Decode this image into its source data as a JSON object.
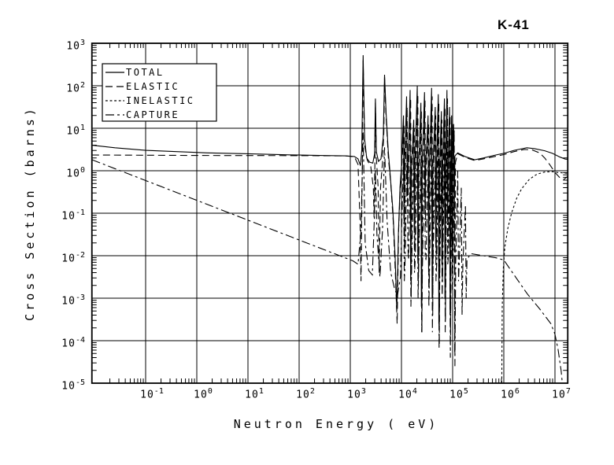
{
  "meta": {
    "background_color": "#ffffff",
    "line_color": "#000000",
    "isotope_title": "K-41"
  },
  "chart_data": {
    "type": "line",
    "title": "K-41",
    "xlabel": "Neutron Energy (  eV)",
    "ylabel": "Cross Section (barns)",
    "scale": "log-log",
    "x_unit": "eV",
    "y_unit": "barns",
    "x_log_range": [
      -2.05,
      7.25
    ],
    "y_log_range": [
      -5,
      3
    ],
    "x_tick_exponents": [
      -1,
      0,
      1,
      2,
      3,
      4,
      5,
      6,
      7
    ],
    "y_tick_exponents": [
      3,
      2,
      1,
      0,
      -1,
      -2,
      -3,
      -4,
      -5
    ],
    "tick_mantissa": "10",
    "grid": true,
    "legend_position": "top-left",
    "note": "points are [log10(E in eV), log10(sigma in barns)]",
    "series": [
      {
        "name": "TOTAL",
        "line_style": "solid",
        "points": [
          [
            -2.05,
            0.6
          ],
          [
            -1.6,
            0.54
          ],
          [
            -1.0,
            0.48
          ],
          [
            -0.4,
            0.45
          ],
          [
            0.2,
            0.42
          ],
          [
            1.0,
            0.4
          ],
          [
            1.8,
            0.375
          ],
          [
            2.4,
            0.36
          ],
          [
            2.9,
            0.35
          ],
          [
            3.08,
            0.335
          ],
          [
            3.15,
            0.28
          ],
          [
            3.2,
            0.12
          ],
          [
            3.225,
            0.5
          ],
          [
            3.25,
            2.72
          ],
          [
            3.28,
            0.75
          ],
          [
            3.32,
            0.3
          ],
          [
            3.38,
            0.2
          ],
          [
            3.44,
            0.18
          ],
          [
            3.475,
            0.4
          ],
          [
            3.49,
            1.7
          ],
          [
            3.51,
            0.45
          ],
          [
            3.55,
            0.22
          ],
          [
            3.6,
            0.28
          ],
          [
            3.645,
            0.8
          ],
          [
            3.67,
            2.26
          ],
          [
            3.7,
            1.35
          ],
          [
            3.74,
            0.5
          ],
          [
            3.78,
            -0.1
          ],
          [
            3.83,
            -0.9
          ],
          [
            3.875,
            -2.0
          ],
          [
            3.91,
            -3.3
          ],
          [
            3.94,
            -1.5
          ],
          [
            3.97,
            -0.4
          ],
          [
            4.0,
            0.1
          ],
          [
            4.04,
            1.3
          ],
          [
            4.05,
            -1.2
          ],
          [
            4.065,
            0.2
          ],
          [
            4.1,
            1.75
          ],
          [
            4.115,
            -0.6
          ],
          [
            4.13,
            0.15
          ],
          [
            4.17,
            1.9
          ],
          [
            4.18,
            -2.6
          ],
          [
            4.195,
            0.1
          ],
          [
            4.24,
            1.2
          ],
          [
            4.25,
            -1.4
          ],
          [
            4.265,
            0.2
          ],
          [
            4.31,
            2.0
          ],
          [
            4.32,
            -2.1
          ],
          [
            4.335,
            0.0
          ],
          [
            4.38,
            1.6
          ],
          [
            4.39,
            -3.2
          ],
          [
            4.405,
            0.1
          ],
          [
            4.45,
            1.85
          ],
          [
            4.46,
            -0.9
          ],
          [
            4.475,
            0.15
          ],
          [
            4.52,
            1.3
          ],
          [
            4.53,
            -2.4
          ],
          [
            4.545,
            0.0
          ],
          [
            4.59,
            1.95
          ],
          [
            4.6,
            -3.0
          ],
          [
            4.615,
            0.1
          ],
          [
            4.66,
            1.5
          ],
          [
            4.67,
            -1.6
          ],
          [
            4.685,
            0.1
          ],
          [
            4.72,
            1.8
          ],
          [
            4.73,
            -3.6
          ],
          [
            4.745,
            0.0
          ],
          [
            4.78,
            1.4
          ],
          [
            4.79,
            -2.2
          ],
          [
            4.805,
            0.1
          ],
          [
            4.84,
            1.7
          ],
          [
            4.85,
            -3.0
          ],
          [
            4.86,
            -0.2
          ],
          [
            4.89,
            1.9
          ],
          [
            4.9,
            -1.2
          ],
          [
            4.91,
            0.0
          ],
          [
            4.94,
            1.5
          ],
          [
            4.95,
            -3.4
          ],
          [
            4.96,
            -0.3
          ],
          [
            4.98,
            1.3
          ],
          [
            4.99,
            -2.0
          ],
          [
            5.0,
            0.2
          ],
          [
            5.02,
            1.1
          ],
          [
            5.03,
            -1.0
          ],
          [
            5.045,
            0.35
          ],
          [
            5.1,
            0.42
          ],
          [
            5.25,
            0.33
          ],
          [
            5.43,
            0.26
          ],
          [
            5.6,
            0.3
          ],
          [
            5.8,
            0.36
          ],
          [
            6.0,
            0.41
          ],
          [
            6.2,
            0.48
          ],
          [
            6.45,
            0.54
          ],
          [
            6.6,
            0.52
          ],
          [
            6.8,
            0.47
          ],
          [
            6.95,
            0.41
          ],
          [
            7.1,
            0.32
          ],
          [
            7.2,
            0.275
          ],
          [
            7.25,
            0.27
          ]
        ]
      },
      {
        "name": "ELASTIC",
        "line_style": "long-dash",
        "points": [
          [
            -2.05,
            0.37
          ],
          [
            -1.0,
            0.365
          ],
          [
            0.0,
            0.36
          ],
          [
            1.0,
            0.358
          ],
          [
            2.0,
            0.355
          ],
          [
            2.9,
            0.35
          ],
          [
            3.08,
            0.33
          ],
          [
            3.15,
            0.15
          ],
          [
            3.19,
            -1.2
          ],
          [
            3.21,
            -2.6
          ],
          [
            3.235,
            0.2
          ],
          [
            3.25,
            2.6
          ],
          [
            3.28,
            0.6
          ],
          [
            3.33,
            0.25
          ],
          [
            3.4,
            0.1
          ],
          [
            3.45,
            -0.4
          ],
          [
            3.465,
            -1.1
          ],
          [
            3.48,
            0.1
          ],
          [
            3.49,
            1.6
          ],
          [
            3.51,
            0.3
          ],
          [
            3.545,
            -0.4
          ],
          [
            3.565,
            -2.4
          ],
          [
            3.59,
            -0.4
          ],
          [
            3.63,
            0.2
          ],
          [
            3.655,
            0.9
          ],
          [
            3.67,
            2.2
          ],
          [
            3.7,
            1.25
          ],
          [
            3.745,
            0.3
          ],
          [
            3.79,
            -0.3
          ],
          [
            3.84,
            -1.2
          ],
          [
            3.88,
            -2.4
          ],
          [
            3.915,
            -3.6
          ],
          [
            3.945,
            -1.4
          ],
          [
            3.975,
            -0.4
          ],
          [
            4.005,
            0.05
          ],
          [
            4.05,
            1.1
          ],
          [
            4.06,
            -1.8
          ],
          [
            4.075,
            0.1
          ],
          [
            4.11,
            1.5
          ],
          [
            4.125,
            -1.0
          ],
          [
            4.14,
            0.1
          ],
          [
            4.18,
            1.7
          ],
          [
            4.19,
            -3.0
          ],
          [
            4.205,
            0.1
          ],
          [
            4.25,
            1.0
          ],
          [
            4.26,
            -1.9
          ],
          [
            4.275,
            0.1
          ],
          [
            4.32,
            1.8
          ],
          [
            4.33,
            -2.7
          ],
          [
            4.345,
            0.0
          ],
          [
            4.39,
            1.4
          ],
          [
            4.4,
            -3.8
          ],
          [
            4.415,
            0.0
          ],
          [
            4.46,
            1.65
          ],
          [
            4.47,
            -1.3
          ],
          [
            4.485,
            0.1
          ],
          [
            4.53,
            1.1
          ],
          [
            4.54,
            -2.8
          ],
          [
            4.555,
            0.0
          ],
          [
            4.6,
            1.75
          ],
          [
            4.61,
            -3.4
          ],
          [
            4.625,
            0.0
          ],
          [
            4.67,
            1.3
          ],
          [
            4.68,
            -2.0
          ],
          [
            4.695,
            0.0
          ],
          [
            4.73,
            1.6
          ],
          [
            4.74,
            -4.1
          ],
          [
            4.755,
            -0.1
          ],
          [
            4.79,
            1.2
          ],
          [
            4.8,
            -2.6
          ],
          [
            4.815,
            0.0
          ],
          [
            4.85,
            1.5
          ],
          [
            4.86,
            -3.5
          ],
          [
            4.87,
            -0.3
          ],
          [
            4.9,
            1.7
          ],
          [
            4.91,
            -1.7
          ],
          [
            4.92,
            -0.1
          ],
          [
            4.95,
            1.3
          ],
          [
            4.96,
            -3.9
          ],
          [
            4.97,
            -0.5
          ],
          [
            4.99,
            1.1
          ],
          [
            5.0,
            -2.4
          ],
          [
            5.01,
            -0.2
          ],
          [
            5.03,
            0.95
          ],
          [
            5.04,
            -4.3
          ],
          [
            5.055,
            0.2
          ],
          [
            5.1,
            0.4
          ],
          [
            5.25,
            0.31
          ],
          [
            5.43,
            0.24
          ],
          [
            5.6,
            0.28
          ],
          [
            5.8,
            0.33
          ],
          [
            6.0,
            0.38
          ],
          [
            6.2,
            0.45
          ],
          [
            6.4,
            0.5
          ],
          [
            6.55,
            0.49
          ],
          [
            6.7,
            0.42
          ],
          [
            6.8,
            0.3
          ],
          [
            6.9,
            0.14
          ],
          [
            7.0,
            -0.04
          ],
          [
            7.1,
            -0.17
          ],
          [
            7.18,
            -0.2
          ],
          [
            7.25,
            -0.13
          ]
        ]
      },
      {
        "name": "INELASTIC",
        "line_style": "short-dash",
        "points": [
          [
            5.96,
            -5.1
          ],
          [
            5.97,
            -3.2
          ],
          [
            5.99,
            -2.3
          ],
          [
            6.02,
            -1.8
          ],
          [
            6.08,
            -1.35
          ],
          [
            6.15,
            -1.0
          ],
          [
            6.25,
            -0.65
          ],
          [
            6.35,
            -0.42
          ],
          [
            6.5,
            -0.2
          ],
          [
            6.65,
            -0.08
          ],
          [
            6.8,
            -0.03
          ],
          [
            6.95,
            -0.02
          ],
          [
            7.05,
            -0.04
          ],
          [
            7.15,
            -0.05
          ],
          [
            7.25,
            -0.06
          ]
        ]
      },
      {
        "name": "CAPTURE",
        "line_style": "dash-dot",
        "points": [
          [
            -2.05,
            0.26
          ],
          [
            3.05,
            -2.12
          ],
          [
            3.15,
            -2.2
          ],
          [
            3.21,
            -1.4
          ],
          [
            3.25,
            0.9
          ],
          [
            3.29,
            -1.7
          ],
          [
            3.36,
            -2.35
          ],
          [
            3.43,
            -2.45
          ],
          [
            3.47,
            -1.1
          ],
          [
            3.49,
            0.05
          ],
          [
            3.52,
            -1.5
          ],
          [
            3.58,
            -2.5
          ],
          [
            3.63,
            -1.4
          ],
          [
            3.67,
            0.55
          ],
          [
            3.72,
            -1.2
          ],
          [
            3.79,
            -2.4
          ],
          [
            3.86,
            -2.75
          ],
          [
            3.92,
            -2.95
          ],
          [
            3.98,
            -2.5
          ],
          [
            4.04,
            0.3
          ],
          [
            4.055,
            -2.6
          ],
          [
            4.07,
            -2.2
          ],
          [
            4.11,
            0.6
          ],
          [
            4.125,
            -1.8
          ],
          [
            4.14,
            -2.1
          ],
          [
            4.17,
            0.1
          ],
          [
            4.185,
            -3.2
          ],
          [
            4.2,
            -2.2
          ],
          [
            4.24,
            0.4
          ],
          [
            4.255,
            -2.4
          ],
          [
            4.27,
            -2.1
          ],
          [
            4.31,
            0.7
          ],
          [
            4.325,
            -3.0
          ],
          [
            4.34,
            -2.0
          ],
          [
            4.38,
            0.2
          ],
          [
            4.395,
            -3.8
          ],
          [
            4.41,
            -2.2
          ],
          [
            4.45,
            0.5
          ],
          [
            4.465,
            -2.0
          ],
          [
            4.48,
            -2.1
          ],
          [
            4.52,
            0.1
          ],
          [
            4.535,
            -3.2
          ],
          [
            4.55,
            -2.2
          ],
          [
            4.59,
            0.6
          ],
          [
            4.605,
            -3.8
          ],
          [
            4.62,
            -2.0
          ],
          [
            4.66,
            0.2
          ],
          [
            4.675,
            -2.6
          ],
          [
            4.69,
            -2.1
          ],
          [
            4.72,
            0.5
          ],
          [
            4.735,
            -4.2
          ],
          [
            4.75,
            -2.2
          ],
          [
            4.78,
            0.1
          ],
          [
            4.795,
            -3.0
          ],
          [
            4.81,
            -2.1
          ],
          [
            4.84,
            0.4
          ],
          [
            4.855,
            -3.8
          ],
          [
            4.87,
            -2.2
          ],
          [
            4.89,
            0.6
          ],
          [
            4.905,
            -2.2
          ],
          [
            4.92,
            -2.0
          ],
          [
            4.94,
            0.0
          ],
          [
            4.955,
            -4.4
          ],
          [
            4.97,
            -2.2
          ],
          [
            4.98,
            0.3
          ],
          [
            4.995,
            -2.8
          ],
          [
            5.01,
            -2.1
          ],
          [
            5.03,
            0.1
          ],
          [
            5.045,
            -4.6
          ],
          [
            5.06,
            -2.2
          ],
          [
            5.1,
            0.0
          ],
          [
            5.115,
            -2.6
          ],
          [
            5.13,
            -2.1
          ],
          [
            5.17,
            -0.4
          ],
          [
            5.185,
            -3.4
          ],
          [
            5.2,
            -2.2
          ],
          [
            5.25,
            -0.8
          ],
          [
            5.265,
            -3.0
          ],
          [
            5.28,
            -2.1
          ],
          [
            5.35,
            -1.95
          ],
          [
            5.6,
            -2.0
          ],
          [
            5.85,
            -2.05
          ],
          [
            6.0,
            -2.1
          ],
          [
            6.2,
            -2.45
          ],
          [
            6.46,
            -2.9
          ],
          [
            6.7,
            -3.25
          ],
          [
            6.92,
            -3.6
          ],
          [
            7.0,
            -3.85
          ],
          [
            7.06,
            -4.2
          ],
          [
            7.12,
            -4.7
          ],
          [
            7.16,
            -5.2
          ]
        ]
      }
    ]
  }
}
